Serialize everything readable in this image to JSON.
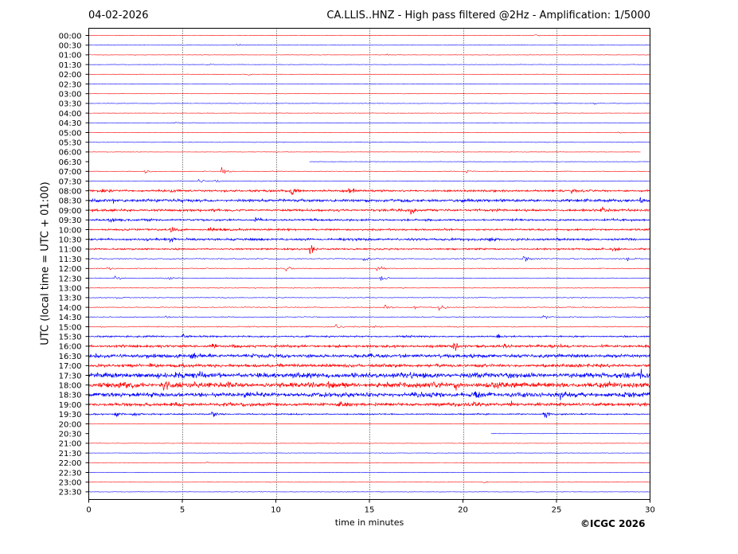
{
  "header": {
    "date": "04-02-2026",
    "title": "CA.LLIS..HNZ - High pass filtered @2Hz - Amplification: 1/5000"
  },
  "copyright": "©ICGC 2026",
  "colors": {
    "red": "#ff0000",
    "blue": "#0000ff",
    "axis": "#000000",
    "grid": "#000000"
  },
  "chart_data": {
    "type": "line",
    "title": "CA.LLIS..HNZ - High pass filtered @2Hz - Amplification: 1/5000",
    "xlabel": "time in minutes",
    "ylabel": "UTC (local time = UTC + 01:00)",
    "xlim": [
      0,
      30
    ],
    "x_ticks": [
      "0",
      "5",
      "10",
      "15",
      "20",
      "25",
      "30"
    ],
    "vertical_grid_at": [
      5,
      10,
      15,
      20,
      25
    ],
    "grid": "dotted vertical",
    "row_labels": [
      "00:00",
      "00:30",
      "01:00",
      "01:30",
      "02:00",
      "02:30",
      "03:00",
      "03:30",
      "04:00",
      "04:30",
      "05:00",
      "05:30",
      "06:00",
      "06:30",
      "07:00",
      "07:30",
      "08:00",
      "08:30",
      "09:00",
      "09:30",
      "10:00",
      "10:30",
      "11:00",
      "11:30",
      "12:00",
      "12:30",
      "13:00",
      "13:30",
      "14:00",
      "14:30",
      "15:00",
      "15:30",
      "16:00",
      "16:30",
      "17:00",
      "17:30",
      "18:00",
      "18:30",
      "19:00",
      "19:30",
      "20:00",
      "20:30",
      "21:00",
      "21:30",
      "22:00",
      "22:30",
      "23:00",
      "23:30"
    ],
    "row_colors": [
      "red",
      "blue"
    ],
    "noise_level": [
      0.3,
      0.3,
      0.3,
      0.3,
      0.3,
      0.3,
      0.3,
      0.3,
      0.3,
      0.3,
      0.3,
      0.4,
      0.3,
      0.3,
      0.5,
      0.6,
      1.6,
      2.2,
      1.8,
      1.5,
      1.4,
      1.8,
      1.3,
      0.8,
      0.7,
      0.6,
      0.6,
      0.6,
      0.6,
      0.7,
      0.8,
      1.2,
      2.0,
      2.8,
      2.4,
      4.0,
      4.2,
      3.5,
      2.6,
      1.0,
      0.4,
      0.3,
      0.3,
      0.3,
      0.3,
      0.3,
      0.3,
      0.3
    ],
    "trace_segments": [
      {
        "row": "06:00",
        "x_start": 0,
        "x_end": 29.5
      },
      {
        "row": "06:30",
        "x_start": 11.8,
        "x_end": 30
      },
      {
        "row": "20:30",
        "x_start": 21.5,
        "x_end": 30
      }
    ],
    "events": [
      {
        "row": "00:00",
        "x": 23.8,
        "amp": 1.5
      },
      {
        "row": "00:30",
        "x": 7.9,
        "amp": 2.5
      },
      {
        "row": "01:00",
        "x": 15.9,
        "amp": 1.5
      },
      {
        "row": "01:30",
        "x": 6.3,
        "amp": 1.5
      },
      {
        "row": "02:00",
        "x": 8.5,
        "amp": 2.0
      },
      {
        "row": "02:30",
        "x": 7.5,
        "amp": 1.5
      },
      {
        "row": "03:30",
        "x": 24.8,
        "amp": 2.0
      },
      {
        "row": "03:30",
        "x": 27.0,
        "amp": 1.5
      },
      {
        "row": "04:30",
        "x": 4.6,
        "amp": 1.5
      },
      {
        "row": "05:00",
        "x": 28.3,
        "amp": 2.0
      },
      {
        "row": "07:00",
        "x": 3.0,
        "amp": 3.0
      },
      {
        "row": "07:00",
        "x": 7.1,
        "amp": 7.0
      },
      {
        "row": "07:00",
        "x": 20.2,
        "amp": 3.0
      },
      {
        "row": "07:30",
        "x": 5.9,
        "amp": 3.0
      },
      {
        "row": "07:30",
        "x": 6.8,
        "amp": 4.0
      },
      {
        "row": "08:00",
        "x": 0.7,
        "amp": 5.0
      },
      {
        "row": "08:00",
        "x": 10.8,
        "amp": 6.0
      },
      {
        "row": "08:00",
        "x": 13.9,
        "amp": 7.0
      },
      {
        "row": "08:00",
        "x": 25.8,
        "amp": 4.0
      },
      {
        "row": "08:30",
        "x": 1.3,
        "amp": 4.0
      },
      {
        "row": "08:30",
        "x": 29.5,
        "amp": 4.0
      },
      {
        "row": "09:00",
        "x": 17.2,
        "amp": 5.0
      },
      {
        "row": "09:00",
        "x": 27.4,
        "amp": 5.0
      },
      {
        "row": "09:30",
        "x": 1.1,
        "amp": 4.0
      },
      {
        "row": "09:30",
        "x": 8.9,
        "amp": 4.0
      },
      {
        "row": "10:00",
        "x": 4.4,
        "amp": 6.0
      },
      {
        "row": "10:00",
        "x": 6.4,
        "amp": 5.0
      },
      {
        "row": "10:30",
        "x": 21.4,
        "amp": 6.0
      },
      {
        "row": "10:30",
        "x": 4.3,
        "amp": 4.0
      },
      {
        "row": "11:00",
        "x": 11.8,
        "amp": 9.0
      },
      {
        "row": "11:00",
        "x": 28.0,
        "amp": 5.0
      },
      {
        "row": "11:30",
        "x": 14.7,
        "amp": 5.0
      },
      {
        "row": "11:30",
        "x": 23.2,
        "amp": 8.0
      },
      {
        "row": "11:30",
        "x": 28.7,
        "amp": 5.0
      },
      {
        "row": "12:00",
        "x": 10.5,
        "amp": 6.0
      },
      {
        "row": "12:00",
        "x": 1.0,
        "amp": 3.0
      },
      {
        "row": "12:00",
        "x": 15.4,
        "amp": 5.0
      },
      {
        "row": "12:30",
        "x": 1.4,
        "amp": 4.0
      },
      {
        "row": "12:30",
        "x": 4.2,
        "amp": 4.0
      },
      {
        "row": "12:30",
        "x": 15.6,
        "amp": 5.0
      },
      {
        "row": "13:30",
        "x": 1.5,
        "amp": 3.0
      },
      {
        "row": "14:00",
        "x": 15.8,
        "amp": 5.0
      },
      {
        "row": "14:00",
        "x": 17.4,
        "amp": 5.0
      },
      {
        "row": "14:00",
        "x": 18.7,
        "amp": 5.0
      },
      {
        "row": "14:30",
        "x": 4.1,
        "amp": 3.0
      },
      {
        "row": "14:30",
        "x": 24.2,
        "amp": 4.0
      },
      {
        "row": "14:30",
        "x": 29.8,
        "amp": 5.0
      },
      {
        "row": "15:00",
        "x": 13.2,
        "amp": 4.0
      },
      {
        "row": "15:00",
        "x": 15.2,
        "amp": 4.0
      },
      {
        "row": "15:30",
        "x": 5.0,
        "amp": 5.0
      },
      {
        "row": "15:30",
        "x": 21.8,
        "amp": 4.0
      },
      {
        "row": "16:00",
        "x": 6.6,
        "amp": 5.0
      },
      {
        "row": "16:00",
        "x": 19.5,
        "amp": 6.0
      },
      {
        "row": "16:00",
        "x": 22.2,
        "amp": 5.0
      },
      {
        "row": "16:30",
        "x": 5.5,
        "amp": 5.0
      },
      {
        "row": "17:00",
        "x": 3.2,
        "amp": 4.0
      },
      {
        "row": "17:30",
        "x": 4.6,
        "amp": 7.0
      },
      {
        "row": "17:30",
        "x": 29.5,
        "amp": 6.0
      },
      {
        "row": "18:00",
        "x": 4.0,
        "amp": 7.0
      },
      {
        "row": "18:00",
        "x": 19.5,
        "amp": 6.0
      },
      {
        "row": "18:30",
        "x": 20.7,
        "amp": 6.0
      },
      {
        "row": "18:30",
        "x": 25.2,
        "amp": 6.0
      },
      {
        "row": "19:00",
        "x": 13.4,
        "amp": 6.0
      },
      {
        "row": "19:00",
        "x": 20.5,
        "amp": 6.0
      },
      {
        "row": "19:00",
        "x": 22.5,
        "amp": 5.0
      },
      {
        "row": "19:30",
        "x": 2.3,
        "amp": 8.0
      },
      {
        "row": "19:30",
        "x": 1.4,
        "amp": 6.0
      },
      {
        "row": "19:30",
        "x": 6.6,
        "amp": 5.0
      },
      {
        "row": "19:30",
        "x": 24.3,
        "amp": 9.0
      },
      {
        "row": "22:00",
        "x": 6.3,
        "amp": 1.5
      },
      {
        "row": "23:00",
        "x": 21.1,
        "amp": 2.0
      },
      {
        "row": "23:30",
        "x": 9.0,
        "amp": 2.0
      }
    ]
  }
}
